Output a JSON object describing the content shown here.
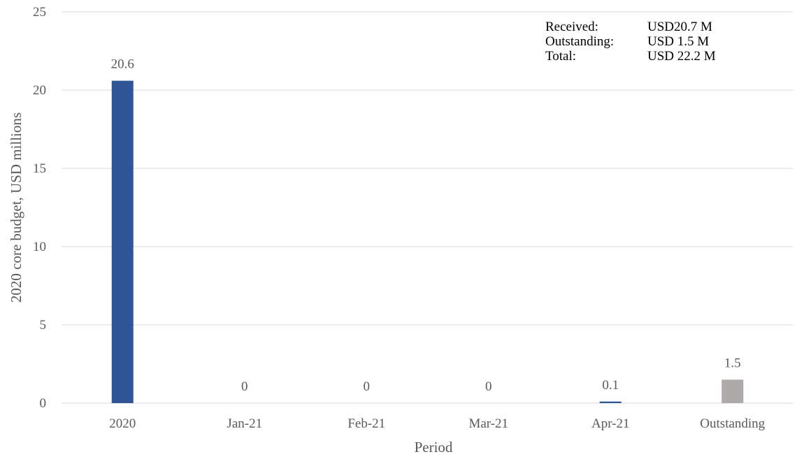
{
  "chart_data": {
    "type": "bar",
    "categories": [
      "2020",
      "Jan-21",
      "Feb-21",
      "Mar-21",
      "Apr-21",
      "Outstanding"
    ],
    "values": [
      20.6,
      0,
      0,
      0,
      0.1,
      1.5
    ],
    "data_labels": [
      "20.6",
      "0",
      "0",
      "0",
      "0.1",
      "1.5"
    ],
    "bar_colors": [
      "#2f5597",
      "#2f5597",
      "#2f5597",
      "#2f5597",
      "#2f5597",
      "#aeaaaa"
    ],
    "xlabel": "Period",
    "ylabel": "2020 core budget, USD millions",
    "ylim": [
      0,
      25
    ],
    "yticks": [
      0,
      5,
      10,
      15,
      20,
      25
    ],
    "grid": true,
    "legend": "none"
  },
  "summary": {
    "received_label": "Received:",
    "received_value": "USD20.7 M",
    "outstanding_label": "Outstanding:",
    "outstanding_value": "USD 1.5 M",
    "total_label": "Total:",
    "total_value": "USD 22.2 M"
  },
  "colors": {
    "received_bar": "#2f5597",
    "outstanding_bar": "#aeaaaa",
    "gridline": "#d9d9d9",
    "text": "#595959"
  }
}
